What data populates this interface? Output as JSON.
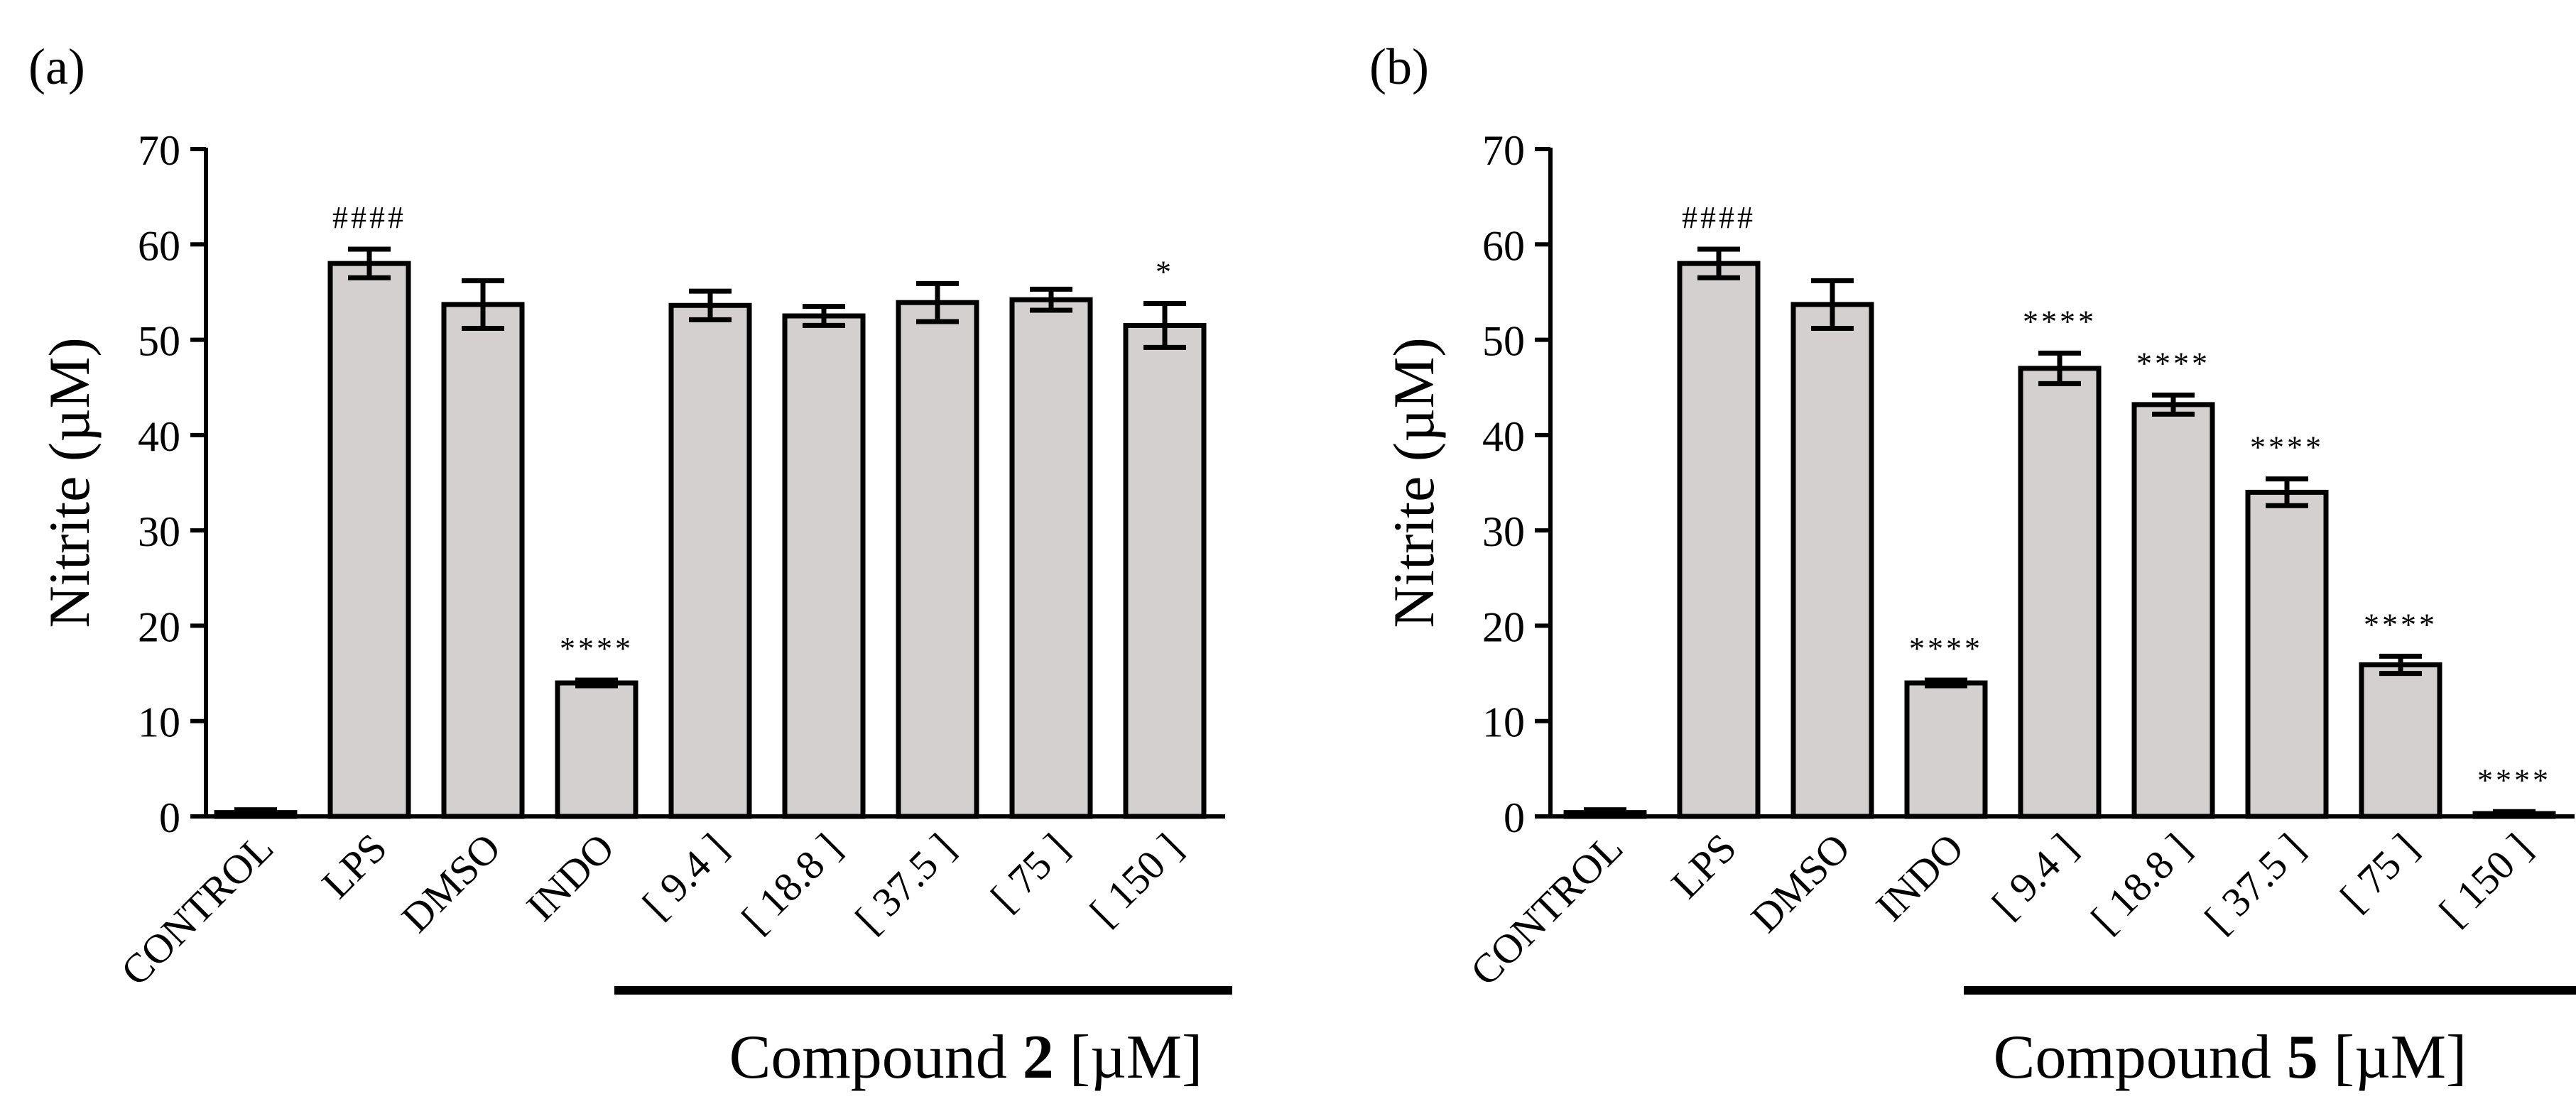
{
  "colors": {
    "bar_fill": "#d3d0cf",
    "stroke": "#000000",
    "background": "#ffffff"
  },
  "chart_data": [
    {
      "panel_label": "(a)",
      "type": "bar",
      "ylabel": "Nitrite (µM)",
      "ylim": [
        0,
        70
      ],
      "yticks": [
        "0",
        "10",
        "20",
        "30",
        "40",
        "50",
        "60",
        "70"
      ],
      "categories": [
        "CONTROL",
        "LPS",
        "DMSO",
        "INDO",
        "[ 9.4 ]",
        "[ 18.8 ]",
        "[ 37.5 ]",
        "[ 75 ]",
        "[ 150 ]"
      ],
      "values": [
        0.4,
        58.0,
        53.7,
        14.0,
        53.6,
        52.5,
        53.9,
        54.2,
        51.5
      ],
      "errors": [
        0.3,
        1.5,
        2.5,
        0.3,
        1.5,
        1.0,
        2.0,
        1.1,
        2.3
      ],
      "significance": [
        "",
        "####",
        "",
        "****",
        "",
        "",
        "",
        "",
        "*"
      ],
      "group_label": {
        "prefix": "Compound ",
        "number": "2",
        "suffix": " [µM]"
      }
    },
    {
      "panel_label": "(b)",
      "type": "bar",
      "ylabel": "Nitrite (µM)",
      "ylim": [
        0,
        70
      ],
      "yticks": [
        "0",
        "10",
        "20",
        "30",
        "40",
        "50",
        "60",
        "70"
      ],
      "categories": [
        "CONTROL",
        "LPS",
        "DMSO",
        "INDO",
        "[ 9.4 ]",
        "[ 18.8 ]",
        "[ 37.5 ]",
        "[ 75 ]",
        "[ 150 ]"
      ],
      "values": [
        0.4,
        58.0,
        53.7,
        14.0,
        47.0,
        43.2,
        34.0,
        15.9,
        0.3
      ],
      "errors": [
        0.3,
        1.5,
        2.5,
        0.3,
        1.6,
        1.0,
        1.4,
        0.9,
        0.2
      ],
      "significance": [
        "",
        "####",
        "",
        "****",
        "****",
        "****",
        "****",
        "****",
        "****"
      ],
      "group_label": {
        "prefix": "Compound ",
        "number": "5",
        "suffix": " [µM]"
      }
    }
  ]
}
